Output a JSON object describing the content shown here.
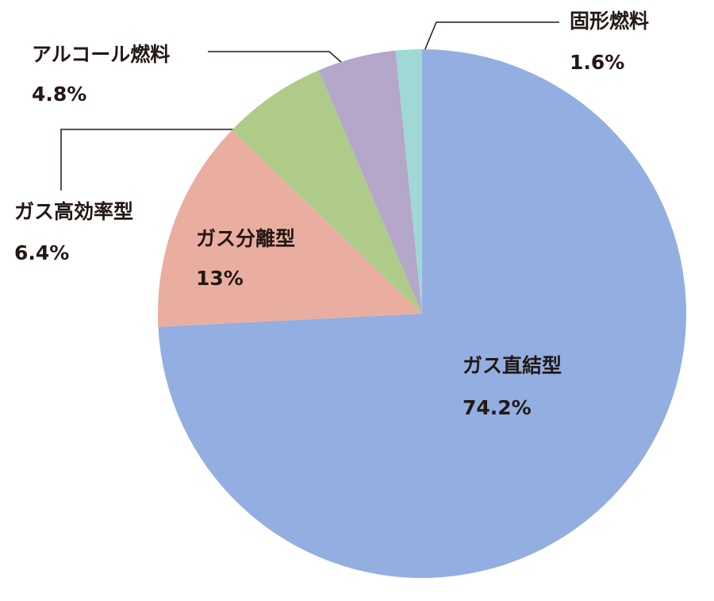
{
  "chart_data": {
    "type": "pie",
    "categories": [
      "ガス直結型",
      "ガス分離型",
      "ガス高効率型",
      "アルコール燃料",
      "固形燃料"
    ],
    "values": [
      74.2,
      13,
      6.4,
      4.8,
      1.6
    ],
    "value_labels": [
      "74.2%",
      "13%",
      "6.4%",
      "4.8%",
      "1.6%"
    ],
    "colors": [
      "#93aee0",
      "#eaaea0",
      "#aecb8a",
      "#b4a7c9",
      "#9fd8d4"
    ]
  }
}
